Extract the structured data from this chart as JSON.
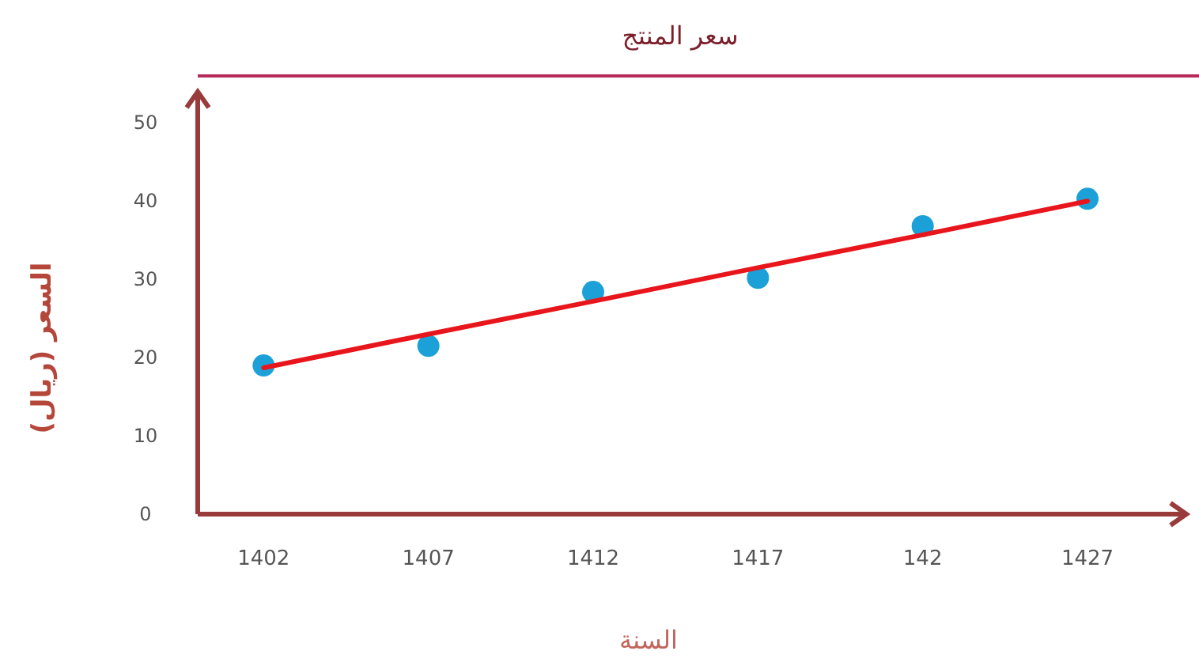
{
  "chart_data": {
    "type": "scatter",
    "title": "سعر المنتج",
    "xlabel": "السنة",
    "ylabel": "السعر (ريال)",
    "categories": [
      "1402",
      "1407",
      "1412",
      "1417",
      "142",
      "1427"
    ],
    "ylim": [
      0,
      56
    ],
    "yticks": [
      0,
      10,
      20,
      30,
      40,
      50
    ],
    "series": [
      {
        "color": "#1ba1d8",
        "marker": "circle",
        "values": [
          19,
          21.5,
          28.4,
          30.2,
          36.8,
          40.3
        ]
      },
      {
        "type": "line",
        "color": "#e8161c",
        "marker": "none",
        "line_style": "solid",
        "values": [
          18.7,
          23,
          27.2,
          31.5,
          35.7,
          40
        ]
      }
    ]
  }
}
